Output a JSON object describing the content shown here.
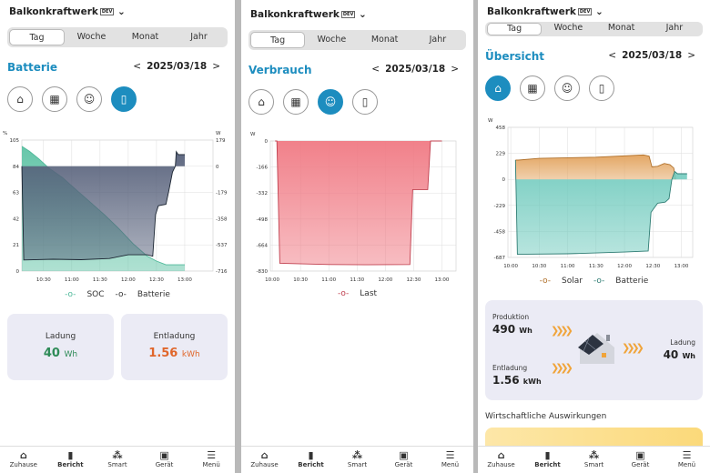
{
  "app": {
    "title": "Balkonkraftwerk",
    "badge": "DEV",
    "tabs": [
      "Tag",
      "Woche",
      "Monat",
      "Jahr"
    ],
    "date": "2025/03/18",
    "prev": "<",
    "next": ">"
  },
  "icons": [
    "home-icon",
    "solar-panel-icon",
    "bulb-icon",
    "battery-icon"
  ],
  "screens": [
    {
      "section": "Batterie",
      "legend": [
        "SOC",
        "Batterie"
      ],
      "cards": [
        {
          "label": "Ladung",
          "value": "40",
          "unit": "Wh",
          "color": "#2e8b57"
        },
        {
          "label": "Entladung",
          "value": "1.56",
          "unit": "kWh",
          "color": "#e0662b"
        }
      ]
    },
    {
      "section": "Verbrauch",
      "legend": [
        "Last"
      ]
    },
    {
      "section": "Übersicht",
      "legend": [
        "Solar",
        "Batterie"
      ],
      "summary": {
        "produktion_label": "Produktion",
        "produktion_value": "490",
        "produktion_unit": "Wh",
        "entladung_label": "Entladung",
        "entladung_value": "1.56",
        "entladung_unit": "kWh",
        "ladung_label": "Ladung",
        "ladung_value": "40",
        "ladung_unit": "Wh"
      },
      "econ_heading": "Wirtschaftliche Auswirkungen"
    }
  ],
  "nav": [
    "Zuhause",
    "Bericht",
    "Smart",
    "Gerät",
    "Menü"
  ],
  "chart_data": [
    {
      "type": "area",
      "x_unit": "minutes after 10:00",
      "xlim": [
        7,
        210
      ],
      "xticks": [
        "10:30",
        "11:00",
        "11:30",
        "12:00",
        "12:30",
        "13:00"
      ],
      "xtick_values": [
        30,
        60,
        90,
        120,
        150,
        180
      ],
      "y_left": {
        "label": "%",
        "ticks": [
          0,
          21,
          42,
          63,
          84,
          105
        ],
        "ylim": [
          0,
          105
        ]
      },
      "y_right": {
        "label": "W",
        "ticks": [
          -716,
          -537,
          -358,
          -179,
          0,
          179
        ],
        "ylim": [
          -716,
          179
        ]
      },
      "series": [
        {
          "name": "SOC",
          "axis": "left",
          "color": "#4fb99a",
          "fill": "#5fc3a5",
          "points": [
            [
              7,
              100
            ],
            [
              15,
              96
            ],
            [
              25,
              90
            ],
            [
              35,
              83
            ],
            [
              50,
              75
            ],
            [
              65,
              65
            ],
            [
              80,
              55
            ],
            [
              95,
              45
            ],
            [
              110,
              34
            ],
            [
              125,
              22
            ],
            [
              140,
              12
            ],
            [
              150,
              8
            ],
            [
              160,
              5
            ],
            [
              180,
              5
            ]
          ]
        },
        {
          "name": "Batterie",
          "axis": "right",
          "color": "#1c2633",
          "fill": "#56607a",
          "points": [
            [
              7,
              0
            ],
            [
              9,
              -640
            ],
            [
              40,
              -635
            ],
            [
              70,
              -638
            ],
            [
              100,
              -630
            ],
            [
              120,
              -605
            ],
            [
              140,
              -605
            ],
            [
              146,
              -615
            ],
            [
              149,
              -330
            ],
            [
              152,
              -270
            ],
            [
              160,
              -260
            ],
            [
              163,
              -170
            ],
            [
              167,
              -40
            ],
            [
              170,
              0
            ],
            [
              171,
              100
            ],
            [
              173,
              80
            ],
            [
              180,
              80
            ]
          ]
        }
      ]
    },
    {
      "type": "area",
      "x_unit": "minutes after 10:00",
      "xlim": [
        -2,
        195
      ],
      "xticks": [
        "10:00",
        "10:30",
        "11:00",
        "11:30",
        "12:00",
        "12:30",
        "13:00"
      ],
      "xtick_values": [
        0,
        30,
        60,
        90,
        120,
        150,
        180
      ],
      "y_left": {
        "label": "W",
        "ticks": [
          -830,
          -664,
          -498,
          -332,
          -166,
          0
        ],
        "ylim": [
          -830,
          0
        ]
      },
      "series": [
        {
          "name": "Last",
          "axis": "left",
          "color": "#c0404f",
          "fill": "#f07a84",
          "points": [
            [
              3,
              0
            ],
            [
              5,
              0
            ],
            [
              8,
              -780
            ],
            [
              60,
              -788
            ],
            [
              100,
              -790
            ],
            [
              146,
              -788
            ],
            [
              149,
              -310
            ],
            [
              165,
              -310
            ],
            [
              168,
              0
            ],
            [
              180,
              0
            ]
          ]
        }
      ]
    },
    {
      "type": "area",
      "x_unit": "minutes after 10:00",
      "xlim": [
        -3,
        192
      ],
      "xticks": [
        "10:00",
        "10:30",
        "11:00",
        "11:30",
        "12:00",
        "12:30",
        "13:00"
      ],
      "xtick_values": [
        0,
        30,
        60,
        90,
        120,
        150,
        180
      ],
      "y_left": {
        "label": "W",
        "ticks": [
          -687,
          -458,
          -229,
          0,
          229,
          458
        ],
        "ylim": [
          -687,
          458
        ]
      },
      "series": [
        {
          "name": "Solar",
          "axis": "left",
          "color": "#b0702a",
          "fill": "#e2a25c",
          "points": [
            [
              5,
              170
            ],
            [
              8,
              170
            ],
            [
              30,
              185
            ],
            [
              90,
              195
            ],
            [
              140,
              215
            ],
            [
              146,
              205
            ],
            [
              149,
              110
            ],
            [
              155,
              115
            ],
            [
              162,
              140
            ],
            [
              168,
              130
            ],
            [
              172,
              100
            ],
            [
              174,
              0
            ]
          ]
        },
        {
          "name": "Batterie",
          "axis": "left",
          "color": "#2f7d74",
          "fill": "#6fcabd",
          "points": [
            [
              5,
              170
            ],
            [
              7,
              -660
            ],
            [
              60,
              -655
            ],
            [
              120,
              -640
            ],
            [
              145,
              -630
            ],
            [
              148,
              -290
            ],
            [
              155,
              -210
            ],
            [
              163,
              -200
            ],
            [
              167,
              -170
            ],
            [
              170,
              0
            ],
            [
              173,
              70
            ],
            [
              176,
              50
            ],
            [
              186,
              50
            ]
          ]
        }
      ]
    }
  ]
}
